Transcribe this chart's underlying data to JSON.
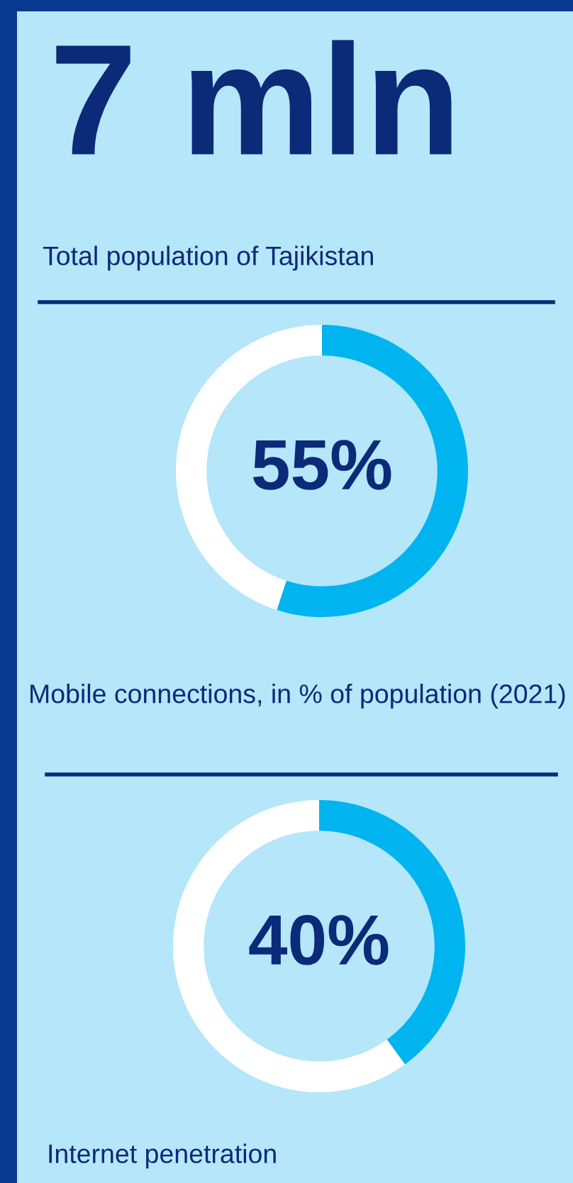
{
  "chart_data": [
    {
      "type": "other",
      "title": "7 mln",
      "subtitle": "Total population of Tajikistan"
    },
    {
      "type": "donut",
      "categories": [
        null,
        null
      ],
      "values": [
        55,
        45
      ],
      "colors": [
        "#00b4ef",
        "#ffffff"
      ],
      "annotations": [
        "55%"
      ],
      "title": "Mobile connections, in % of population (2021)"
    },
    {
      "type": "donut",
      "categories": [
        null,
        null
      ],
      "values": [
        40,
        60
      ],
      "colors": [
        "#00b4ef",
        "#ffffff"
      ],
      "annotations": [
        "40%"
      ],
      "title": "Internet penetration"
    }
  ]
}
